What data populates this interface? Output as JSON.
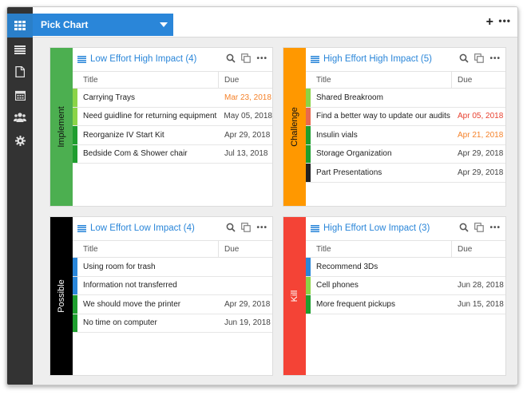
{
  "app": {
    "tab_label": "Pick Chart"
  },
  "colors": {
    "accent": "#2a86d9",
    "implement": "#4caf50",
    "challenge": "#ff9800",
    "possible": "#000000",
    "kill": "#f44336",
    "due_warn": "#f5822a",
    "due_late": "#e8402f"
  },
  "sidebar": {
    "icons": [
      "grid-icon",
      "list-icon",
      "document-icon",
      "calendar-icon",
      "people-icon",
      "gear-icon"
    ]
  },
  "table_headers": {
    "title": "Title",
    "due": "Due"
  },
  "panels": [
    {
      "key": "implement",
      "side_label": "Implement",
      "side_color": "#4caf50",
      "title": "Low Effort High Impact (4)",
      "rows": [
        {
          "title": "Carrying Trays",
          "due": "Mar 23, 2018",
          "bar": "#8bd448",
          "due_color": "#f5822a"
        },
        {
          "title": "Need guidline for returning equipment",
          "due": "May 05, 2018",
          "bar": "#8bd448",
          "due_color": "#444444"
        },
        {
          "title": "Reorganize IV Start Kit",
          "due": "Apr 29, 2018",
          "bar": "#1e9e2e",
          "due_color": "#444444"
        },
        {
          "title": "Bedside Com & Shower chair",
          "due": "Jul 13, 2018",
          "bar": "#1e9e2e",
          "due_color": "#444444"
        }
      ]
    },
    {
      "key": "challenge",
      "side_label": "Challenge",
      "side_color": "#ff9800",
      "title": "High Effort High Impact (5)",
      "rows": [
        {
          "title": "Shared Breakroom",
          "due": "",
          "bar": "#8bd448",
          "due_color": "#444444"
        },
        {
          "title": "Find a better way to update our audits",
          "due": "Apr 05, 2018",
          "bar": "#e8694f",
          "due_color": "#e8402f"
        },
        {
          "title": "Insulin vials",
          "due": "Apr 21, 2018",
          "bar": "#1e9e2e",
          "due_color": "#f5822a"
        },
        {
          "title": "Storage Organization",
          "due": "Apr 29, 2018",
          "bar": "#1e9e2e",
          "due_color": "#444444"
        },
        {
          "title": "Part Presentations",
          "due": "Apr 29, 2018",
          "bar": "#222222",
          "due_color": "#444444"
        }
      ]
    },
    {
      "key": "possible",
      "side_label": "Possible",
      "side_color": "#000000",
      "title": "Low Effort Low Impact (4)",
      "rows": [
        {
          "title": "Using room for trash",
          "due": "",
          "bar": "#2a86d9",
          "due_color": "#444444"
        },
        {
          "title": "Information not transferred",
          "due": "",
          "bar": "#2a86d9",
          "due_color": "#444444"
        },
        {
          "title": "We should move the printer",
          "due": "Apr 29, 2018",
          "bar": "#1e9e2e",
          "due_color": "#444444"
        },
        {
          "title": "No time on computer",
          "due": "Jun 19, 2018",
          "bar": "#1e9e2e",
          "due_color": "#444444"
        }
      ]
    },
    {
      "key": "kill",
      "side_label": "Kill",
      "side_color": "#f44336",
      "title": "High Effort Low Impact (3)",
      "rows": [
        {
          "title": "Recommend 3Ds",
          "due": "",
          "bar": "#2a86d9",
          "due_color": "#444444"
        },
        {
          "title": "Cell phones",
          "due": "Jun 28, 2018",
          "bar": "#8bd448",
          "due_color": "#444444"
        },
        {
          "title": "More frequent pickups",
          "due": "Jun 15, 2018",
          "bar": "#1e9e2e",
          "due_color": "#444444"
        }
      ]
    }
  ]
}
